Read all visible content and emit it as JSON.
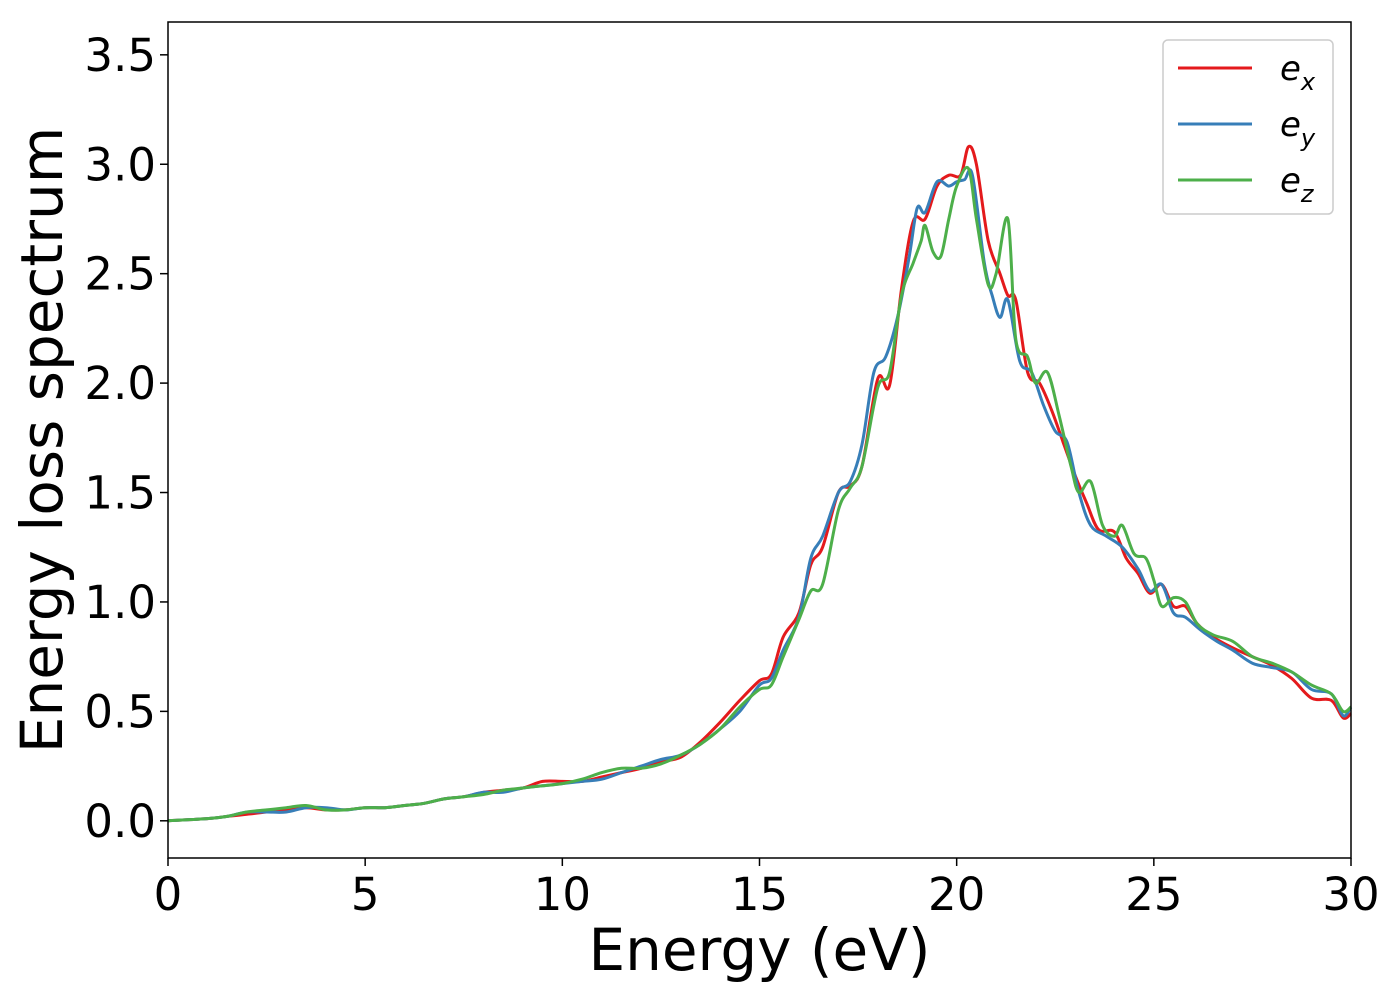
{
  "chart_data": {
    "type": "line",
    "xlabel": "Energy (eV)",
    "ylabel": "Energy loss spectrum",
    "xlim": [
      0,
      30
    ],
    "ylim": [
      -0.17,
      3.65
    ],
    "xticks": [
      0,
      5,
      10,
      15,
      20,
      25,
      30
    ],
    "yticks": [
      0.0,
      0.5,
      1.0,
      1.5,
      2.0,
      2.5,
      3.0,
      3.5
    ],
    "xtick_labels": [
      "0",
      "5",
      "10",
      "15",
      "20",
      "25",
      "30"
    ],
    "ytick_labels": [
      "0.0",
      "0.5",
      "1.0",
      "1.5",
      "2.0",
      "2.5",
      "3.0",
      "3.5"
    ],
    "grid": false,
    "legend_position": "top-right",
    "series": [
      {
        "name": "e",
        "subscript": "x",
        "color": "#e41a1c",
        "x": [
          0,
          1,
          1.5,
          2,
          2.5,
          3,
          3.5,
          4,
          4.5,
          5,
          5.5,
          6,
          6.5,
          7,
          7.5,
          8,
          8.5,
          9,
          9.5,
          10,
          10.5,
          11,
          11.5,
          12,
          12.5,
          13,
          13.5,
          14,
          14.5,
          15,
          15.3,
          15.6,
          16,
          16.3,
          16.6,
          17,
          17.3,
          17.6,
          18,
          18.3,
          18.6,
          18.9,
          19.2,
          19.5,
          19.8,
          20.1,
          20.3,
          20.5,
          20.8,
          21.1,
          21.3,
          21.5,
          21.8,
          22.1,
          22.4,
          22.7,
          23,
          23.3,
          23.6,
          24,
          24.3,
          24.6,
          24.9,
          25.2,
          25.5,
          25.8,
          26.1,
          26.5,
          27,
          27.5,
          28,
          28.5,
          29,
          29.5,
          29.8,
          30
        ],
        "y": [
          0,
          0.01,
          0.02,
          0.03,
          0.04,
          0.05,
          0.06,
          0.05,
          0.05,
          0.06,
          0.06,
          0.07,
          0.08,
          0.1,
          0.11,
          0.13,
          0.14,
          0.15,
          0.18,
          0.18,
          0.18,
          0.2,
          0.22,
          0.24,
          0.27,
          0.29,
          0.36,
          0.45,
          0.55,
          0.64,
          0.67,
          0.84,
          0.95,
          1.17,
          1.25,
          1.5,
          1.53,
          1.62,
          2.02,
          1.99,
          2.43,
          2.74,
          2.75,
          2.9,
          2.95,
          2.95,
          3.08,
          3.0,
          2.65,
          2.5,
          2.4,
          2.38,
          2.05,
          2.0,
          1.88,
          1.73,
          1.58,
          1.45,
          1.33,
          1.32,
          1.2,
          1.13,
          1.04,
          1.08,
          0.98,
          0.98,
          0.9,
          0.84,
          0.79,
          0.75,
          0.71,
          0.65,
          0.56,
          0.55,
          0.47,
          0.49
        ]
      },
      {
        "name": "e",
        "subscript": "y",
        "color": "#377eb8",
        "x": [
          0,
          1,
          1.5,
          2,
          2.5,
          3,
          3.5,
          4,
          4.5,
          5,
          5.5,
          6,
          6.5,
          7,
          7.5,
          8,
          8.5,
          9,
          9.5,
          10,
          10.5,
          11,
          11.5,
          12,
          12.5,
          13,
          13.5,
          14,
          14.5,
          15,
          15.3,
          15.6,
          16,
          16.3,
          16.6,
          17,
          17.3,
          17.6,
          17.9,
          18.2,
          18.5,
          18.8,
          19.0,
          19.2,
          19.5,
          19.8,
          20.0,
          20.2,
          20.4,
          20.7,
          20.9,
          21.1,
          21.3,
          21.6,
          21.9,
          22.2,
          22.5,
          22.8,
          23.1,
          23.4,
          23.8,
          24.2,
          24.6,
          24.9,
          25.2,
          25.5,
          25.8,
          26.2,
          26.6,
          27,
          27.5,
          28,
          28.5,
          29,
          29.5,
          29.8,
          30
        ],
        "y": [
          0,
          0.01,
          0.02,
          0.04,
          0.04,
          0.04,
          0.06,
          0.06,
          0.05,
          0.06,
          0.06,
          0.07,
          0.08,
          0.1,
          0.11,
          0.13,
          0.13,
          0.15,
          0.16,
          0.17,
          0.18,
          0.19,
          0.22,
          0.25,
          0.28,
          0.3,
          0.35,
          0.42,
          0.5,
          0.62,
          0.65,
          0.78,
          0.93,
          1.2,
          1.3,
          1.5,
          1.55,
          1.72,
          2.05,
          2.12,
          2.3,
          2.58,
          2.8,
          2.78,
          2.92,
          2.9,
          2.92,
          2.93,
          2.95,
          2.55,
          2.4,
          2.3,
          2.38,
          2.1,
          2.05,
          1.9,
          1.78,
          1.73,
          1.5,
          1.35,
          1.3,
          1.25,
          1.15,
          1.05,
          1.08,
          0.95,
          0.93,
          0.87,
          0.82,
          0.78,
          0.72,
          0.7,
          0.68,
          0.6,
          0.58,
          0.48,
          0.52
        ]
      },
      {
        "name": "e",
        "subscript": "z",
        "color": "#4daf4a",
        "x": [
          0,
          1,
          1.5,
          2,
          2.5,
          3,
          3.5,
          4,
          4.5,
          5,
          5.5,
          6,
          6.5,
          7,
          7.5,
          8,
          8.5,
          9,
          9.5,
          10,
          10.5,
          11,
          11.5,
          12,
          12.5,
          13,
          13.5,
          14,
          14.5,
          15,
          15.3,
          15.6,
          16,
          16.3,
          16.6,
          17,
          17.3,
          17.6,
          18,
          18.3,
          18.6,
          18.9,
          19.1,
          19.2,
          19.4,
          19.6,
          19.8,
          20.0,
          20.3,
          20.5,
          20.8,
          21.0,
          21.3,
          21.5,
          21.8,
          22.0,
          22.3,
          22.6,
          22.9,
          23.1,
          23.4,
          23.7,
          24.0,
          24.2,
          24.5,
          24.8,
          25.0,
          25.2,
          25.5,
          25.8,
          26.1,
          26.5,
          27,
          27.5,
          28,
          28.5,
          29,
          29.5,
          29.8,
          30
        ],
        "y": [
          0,
          0.01,
          0.02,
          0.04,
          0.05,
          0.06,
          0.07,
          0.05,
          0.05,
          0.06,
          0.06,
          0.07,
          0.08,
          0.1,
          0.11,
          0.12,
          0.14,
          0.15,
          0.16,
          0.17,
          0.19,
          0.22,
          0.24,
          0.24,
          0.26,
          0.3,
          0.35,
          0.42,
          0.52,
          0.6,
          0.62,
          0.75,
          0.92,
          1.05,
          1.08,
          1.42,
          1.52,
          1.62,
          1.98,
          2.05,
          2.4,
          2.55,
          2.65,
          2.72,
          2.6,
          2.58,
          2.75,
          2.9,
          2.98,
          2.75,
          2.45,
          2.5,
          2.75,
          2.2,
          2.12,
          2.0,
          2.05,
          1.85,
          1.62,
          1.5,
          1.55,
          1.35,
          1.3,
          1.35,
          1.22,
          1.2,
          1.1,
          0.98,
          1.02,
          1.0,
          0.9,
          0.85,
          0.82,
          0.75,
          0.72,
          0.68,
          0.62,
          0.58,
          0.5,
          0.52
        ]
      }
    ]
  }
}
